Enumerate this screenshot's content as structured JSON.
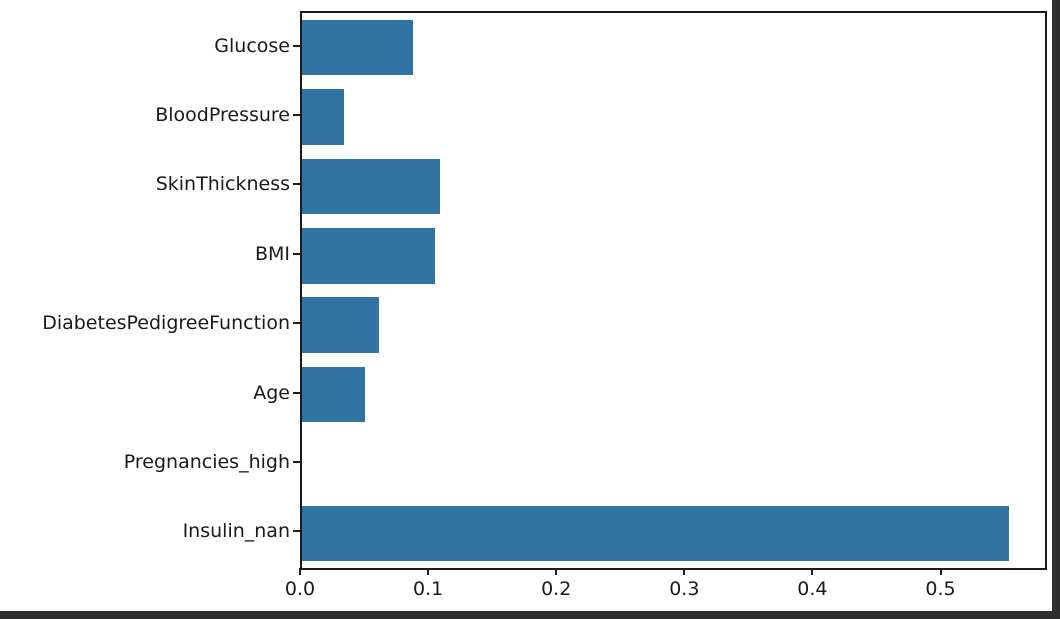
{
  "window": {
    "background_color": "#ffffff",
    "frame_color": "#2f2f2f"
  },
  "chart_data": {
    "type": "bar",
    "orientation": "horizontal",
    "title": "",
    "xlabel": "",
    "ylabel": "",
    "categories": [
      "Glucose",
      "BloodPressure",
      "SkinThickness",
      "BMI",
      "DiabetesPedigreeFunction",
      "Age",
      "Pregnancies_high",
      "Insulin_nan"
    ],
    "values": [
      0.087,
      0.033,
      0.108,
      0.104,
      0.06,
      0.049,
      0.0,
      0.552
    ],
    "bar_color": "#3274a1",
    "xlim": [
      0,
      0.58
    ],
    "x_tick_values": [
      0.0,
      0.1,
      0.2,
      0.3,
      0.4,
      0.5
    ],
    "x_tick_labels": [
      "0.0",
      "0.1",
      "0.2",
      "0.3",
      "0.4",
      "0.5"
    ],
    "grid": false,
    "legend_position": "none",
    "axis_color": "#1a1a1a"
  }
}
